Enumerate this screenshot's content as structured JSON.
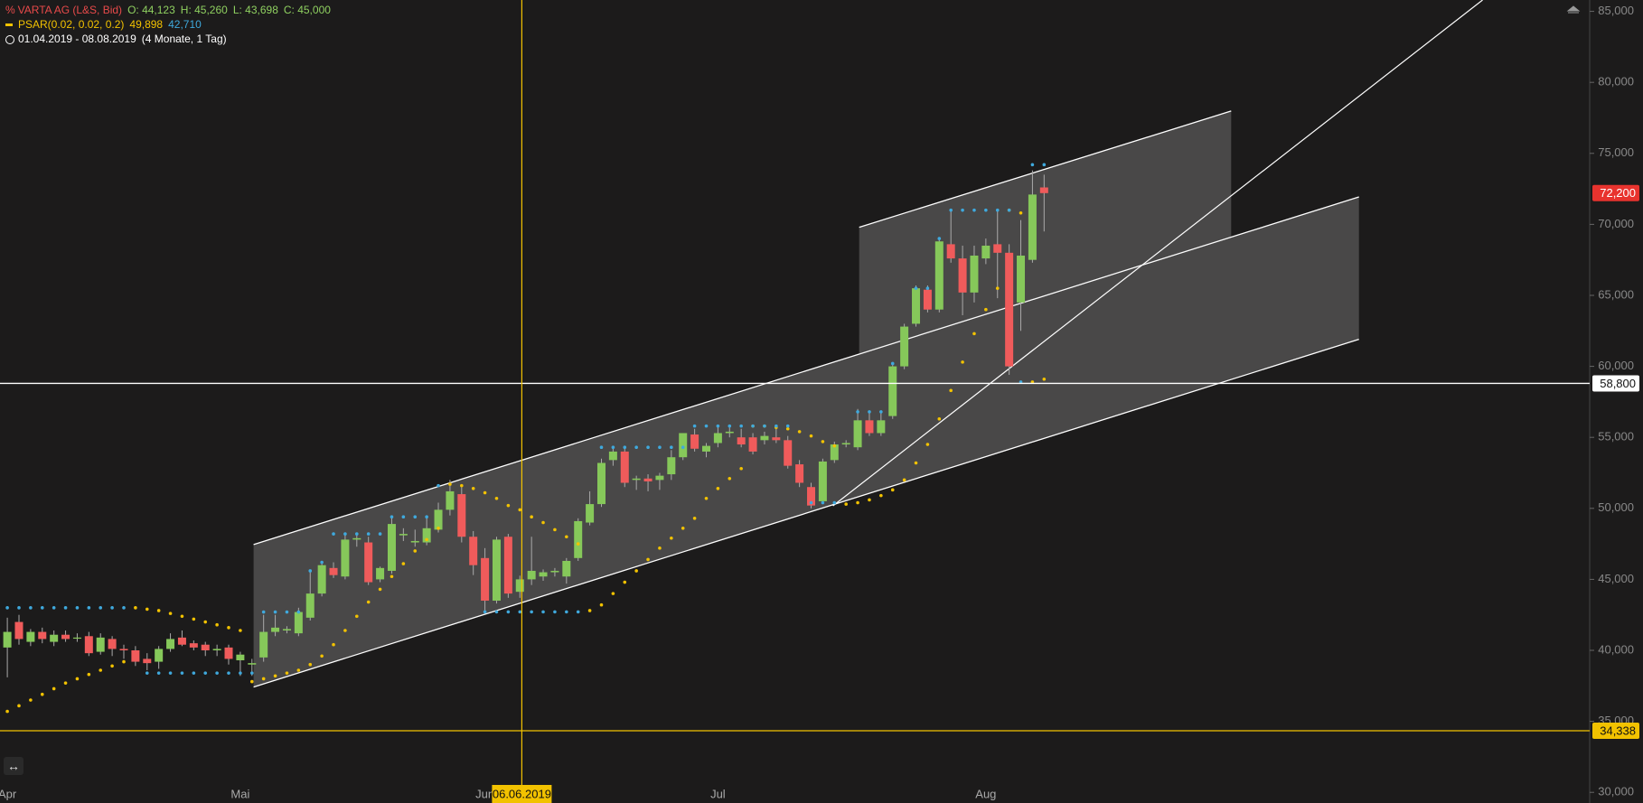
{
  "chart_data": {
    "type": "candlestick",
    "up_color": "#86c85a",
    "down_color": "#f05b5b",
    "ylim": [
      29250,
      85800
    ],
    "yticks": [
      {
        "value": 30000,
        "label": "30,000"
      },
      {
        "value": 35000,
        "label": "35,000"
      },
      {
        "value": 40000,
        "label": "40,000"
      },
      {
        "value": 45000,
        "label": "45,000"
      },
      {
        "value": 50000,
        "label": "50,000"
      },
      {
        "value": 55000,
        "label": "55,000"
      },
      {
        "value": 60000,
        "label": "60,000"
      },
      {
        "value": 65000,
        "label": "65,000"
      },
      {
        "value": 70000,
        "label": "70,000"
      },
      {
        "value": 75000,
        "label": "75,000"
      },
      {
        "value": 80000,
        "label": "80,000"
      },
      {
        "value": 85000,
        "label": "85,000"
      }
    ],
    "legend": {
      "name": "VARTA AG (L&S, Bid)",
      "ohlc": [
        "O: 44,123",
        "H: 45,260",
        "L: 43,698",
        "C: 45,000"
      ]
    },
    "indicator": {
      "name": "PSAR(0.02, 0.02, 0.2)",
      "values": [
        "49,898",
        "42,710"
      ]
    },
    "period": {
      "range": "01.04.2019 - 08.08.2019",
      "span": "(4 Monate, 1 Tag)"
    },
    "cursor_label": "06.06.2019",
    "last_price": {
      "value": 72200,
      "label": "72,200",
      "color": "#e8332e"
    },
    "hlines": [
      {
        "value": 58800,
        "label": "58,800",
        "color": "#ffffff"
      },
      {
        "value": 34338,
        "label": "34,338",
        "color": "#f2c200"
      }
    ],
    "categories": [
      "Apr",
      null,
      null,
      null,
      null,
      null,
      null,
      null,
      null,
      null,
      null,
      null,
      null,
      null,
      null,
      null,
      null,
      null,
      null,
      null,
      "Mai",
      null,
      null,
      null,
      null,
      null,
      null,
      null,
      null,
      null,
      null,
      null,
      null,
      null,
      null,
      null,
      null,
      null,
      null,
      null,
      null,
      "Jun",
      null,
      null,
      null,
      null,
      null,
      null,
      null,
      null,
      null,
      null,
      null,
      null,
      null,
      null,
      null,
      null,
      null,
      null,
      null,
      "Jul",
      null,
      null,
      null,
      null,
      null,
      null,
      null,
      null,
      null,
      null,
      null,
      null,
      null,
      null,
      null,
      null,
      null,
      null,
      null,
      null,
      null,
      null,
      "Aug",
      null,
      null,
      null,
      null,
      null
    ],
    "open": [
      40200,
      42000,
      40600,
      41300,
      40600,
      41100,
      40900,
      41000,
      39900,
      40800,
      40100,
      40000,
      39400,
      39200,
      40100,
      40900,
      40500,
      40400,
      40000,
      40200,
      39300,
      39000,
      39500,
      41300,
      41400,
      41200,
      42300,
      44000,
      45800,
      45200,
      47800,
      47600,
      45000,
      45600,
      48100,
      47600,
      47600,
      48500,
      49900,
      51000,
      48000,
      46500,
      43500,
      48000,
      44123,
      45000,
      45200,
      45500,
      45200,
      46500,
      49000,
      50300,
      53400,
      54000,
      52000,
      52100,
      52000,
      52400,
      53600,
      55200,
      54000,
      54600,
      55300,
      55000,
      55000,
      54800,
      55000,
      54800,
      53100,
      51500,
      50500,
      53400,
      54500,
      54300,
      56200,
      55300,
      56500,
      60000,
      63000,
      65400,
      64000,
      68600,
      67600,
      65200,
      67600,
      68600,
      68000,
      64500,
      67500,
      72600
    ],
    "high": [
      42300,
      42500,
      41500,
      41600,
      41400,
      41400,
      41200,
      41300,
      41200,
      41000,
      40400,
      40300,
      39800,
      40300,
      41200,
      41400,
      40700,
      40600,
      40400,
      40400,
      39900,
      39400,
      42500,
      42500,
      41700,
      43000,
      45500,
      46200,
      46200,
      48300,
      48200,
      48000,
      45900,
      49500,
      48600,
      48500,
      49300,
      50400,
      52000,
      51500,
      48400,
      47200,
      48000,
      48200,
      45260,
      48000,
      45700,
      45800,
      46500,
      49300,
      51200,
      53500,
      54300,
      54300,
      52300,
      52400,
      52500,
      54100,
      55300,
      55600,
      54600,
      55800,
      55700,
      55600,
      55300,
      55400,
      55600,
      55100,
      53400,
      51800,
      53500,
      54700,
      54800,
      57000,
      56700,
      56700,
      60300,
      63000,
      65700,
      65700,
      69000,
      71000,
      68500,
      68500,
      69000,
      71000,
      68600,
      70300,
      73800,
      73500
    ],
    "low": [
      38100,
      40400,
      40300,
      40500,
      40300,
      40600,
      40600,
      39600,
      39700,
      39600,
      39400,
      38900,
      38600,
      38700,
      39900,
      40300,
      40000,
      39600,
      39600,
      39000,
      38200,
      38200,
      39200,
      41000,
      41200,
      41000,
      42100,
      43800,
      45100,
      45000,
      47300,
      44600,
      44800,
      45400,
      47700,
      47300,
      47400,
      48300,
      49500,
      47600,
      45300,
      42800,
      43300,
      43700,
      43698,
      44600,
      44900,
      45200,
      44700,
      46300,
      48800,
      50100,
      53000,
      51500,
      51300,
      51200,
      51300,
      52000,
      53400,
      54000,
      53600,
      54300,
      55000,
      54300,
      53800,
      54500,
      54600,
      52800,
      51500,
      50000,
      50300,
      53200,
      54300,
      54100,
      55100,
      55100,
      56300,
      59800,
      62800,
      63800,
      63800,
      67300,
      63600,
      64500,
      67200,
      64800,
      59400,
      62500,
      67300,
      69500
    ],
    "close": [
      41300,
      40800,
      41300,
      40800,
      41100,
      40800,
      40900,
      39800,
      40900,
      40100,
      40000,
      39200,
      39100,
      40100,
      40800,
      40400,
      40200,
      40000,
      40100,
      39400,
      39700,
      39100,
      41300,
      41600,
      41500,
      42700,
      44000,
      46000,
      45300,
      47800,
      47900,
      44800,
      45800,
      48900,
      48200,
      47700,
      48600,
      49900,
      51200,
      48000,
      46000,
      43500,
      47800,
      44000,
      45000,
      45600,
      45500,
      45600,
      46300,
      49100,
      50300,
      53200,
      54000,
      51800,
      52100,
      51900,
      52300,
      53600,
      55300,
      54200,
      54400,
      55300,
      55400,
      54500,
      54000,
      55100,
      54800,
      53000,
      51800,
      50200,
      53300,
      54500,
      54600,
      56200,
      55300,
      56200,
      60000,
      62800,
      65500,
      64000,
      68800,
      67600,
      65200,
      67800,
      68500,
      68000,
      60000,
      67800,
      72100,
      72200
    ],
    "series": [
      {
        "color": "#f2c200",
        "values": [
          35700,
          36100,
          36500,
          36900,
          37300,
          37700,
          38000,
          38300,
          38600,
          38900,
          39200,
          43000,
          42900,
          42800,
          42600,
          42400,
          42200,
          42000,
          41800,
          41600,
          41400,
          37800,
          38000,
          38200,
          38400,
          38600,
          39000,
          39600,
          40400,
          41400,
          42400,
          43400,
          44300,
          45200,
          46100,
          47000,
          47800,
          48600,
          51700,
          51600,
          51400,
          51100,
          50700,
          50200,
          49898,
          49400,
          49000,
          48500,
          48000,
          47500,
          42800,
          43200,
          44000,
          44800,
          45600,
          46400,
          47200,
          47900,
          48600,
          49300,
          50700,
          51400,
          52100,
          52800,
          55800,
          55800,
          55700,
          55600,
          55400,
          55100,
          54700,
          54400,
          50300,
          50400,
          50600,
          50900,
          51300,
          52000,
          53200,
          54500,
          56300,
          58300,
          60300,
          62300,
          64000,
          65500,
          71000,
          70800,
          58900,
          59100
        ]
      },
      {
        "color": "#3fa9dd",
        "values": [
          43000,
          43000,
          43000,
          43000,
          43000,
          43000,
          43000,
          43000,
          43000,
          43000,
          43000,
          null,
          38400,
          38400,
          38400,
          38400,
          38400,
          38400,
          38400,
          38400,
          38400,
          38400,
          42700,
          42700,
          42700,
          42700,
          45600,
          46200,
          48200,
          48200,
          48200,
          48200,
          48200,
          49400,
          49400,
          49400,
          49400,
          51600,
          null,
          null,
          null,
          42710,
          42710,
          42710,
          42710,
          42710,
          42710,
          42710,
          42710,
          42710,
          null,
          54300,
          54300,
          54300,
          54300,
          54300,
          54300,
          54300,
          54300,
          55800,
          55800,
          55800,
          55800,
          55800,
          55800,
          55800,
          55800,
          55800,
          null,
          50400,
          50400,
          50400,
          null,
          56800,
          56800,
          56800,
          60200,
          null,
          65500,
          65500,
          69000,
          71000,
          71000,
          71000,
          71000,
          71000,
          71000,
          58900,
          74200,
          74200
        ]
      }
    ]
  }
}
